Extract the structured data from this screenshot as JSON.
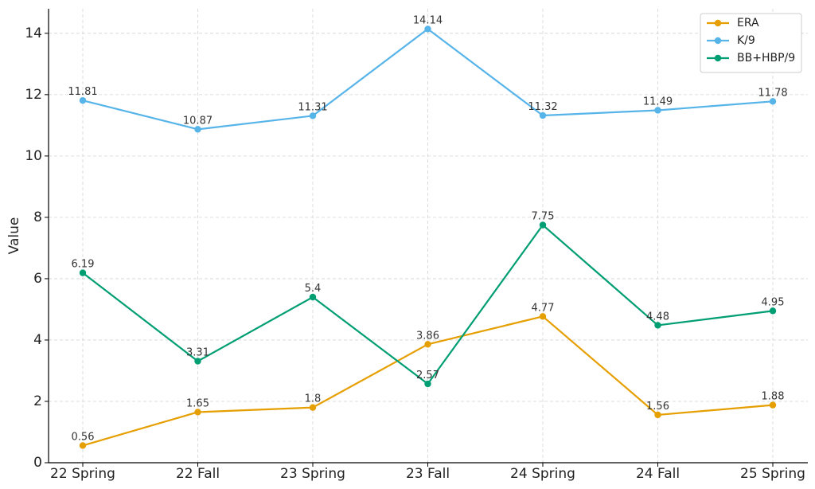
{
  "chart_data": {
    "type": "line",
    "title": "",
    "xlabel": "",
    "ylabel": "Value",
    "categories": [
      "22 Spring",
      "22 Fall",
      "23 Spring",
      "23 Fall",
      "24 Spring",
      "24 Fall",
      "25 Spring"
    ],
    "ylim": [
      0,
      14.8
    ],
    "yticks": [
      0,
      2,
      4,
      6,
      8,
      10,
      12,
      14
    ],
    "grid": true,
    "legend_position": "top-right",
    "series": [
      {
        "name": "ERA",
        "color": "#E69F00",
        "values": [
          0.56,
          1.65,
          1.8,
          3.86,
          4.77,
          1.56,
          1.88
        ],
        "labels": [
          "0.56",
          "1.65",
          "1.8",
          "3.86",
          "4.77",
          "1.56",
          "1.88"
        ]
      },
      {
        "name": "K/9",
        "color": "#56B4E9",
        "values": [
          11.81,
          10.87,
          11.31,
          14.14,
          11.32,
          11.49,
          11.78
        ],
        "labels": [
          "11.81",
          "10.87",
          "11.31",
          "14.14",
          "11.32",
          "11.49",
          "11.78"
        ]
      },
      {
        "name": "BB+HBP/9",
        "color": "#009E73",
        "values": [
          6.19,
          3.31,
          5.4,
          2.57,
          7.75,
          4.48,
          4.95
        ],
        "labels": [
          "6.19",
          "3.31",
          "5.4",
          "2.57",
          "7.75",
          "4.48",
          "4.95"
        ]
      }
    ]
  }
}
